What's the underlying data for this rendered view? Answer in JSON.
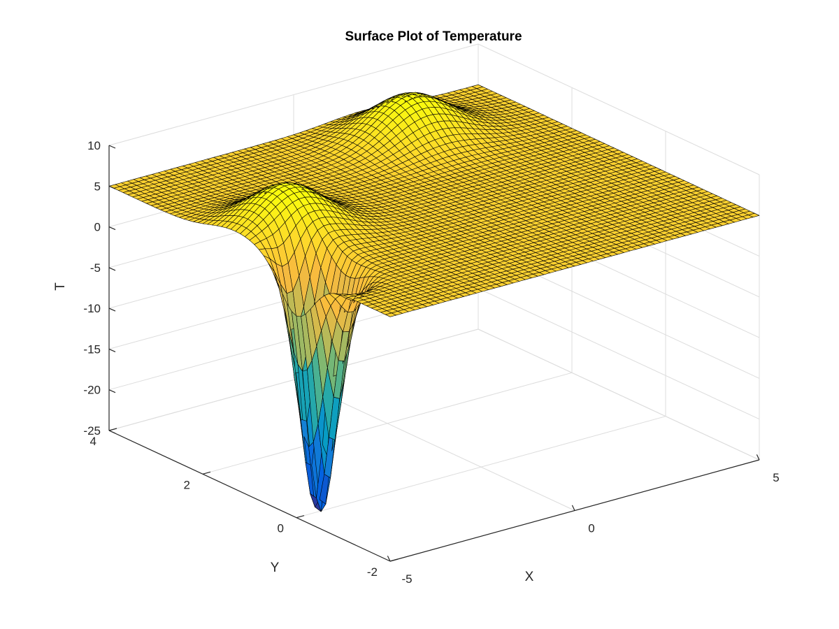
{
  "chart_data": {
    "type": "surface",
    "title": "Surface Plot of Temperature",
    "xlabel": "X",
    "ylabel": "Y",
    "zlabel": "T",
    "xlim": [
      -5,
      5
    ],
    "ylim": [
      -2,
      4
    ],
    "zlim": [
      -25,
      10
    ],
    "xticks": [
      -5,
      0,
      5
    ],
    "yticks": [
      -2,
      0,
      2,
      4
    ],
    "zticks": [
      -25,
      -20,
      -15,
      -10,
      -5,
      0,
      5,
      10
    ],
    "grid": true,
    "colormap": "parula",
    "baseline_value": 5,
    "features": [
      {
        "kind": "peak",
        "x": -3.6,
        "y": 1.3,
        "amplitude": 5.6,
        "sigma_x": 0.9,
        "sigma_y": 0.55
      },
      {
        "kind": "peak",
        "x": 1.9,
        "y": 3.0,
        "amplitude": 5.3,
        "sigma_x": 0.95,
        "sigma_y": 0.5
      },
      {
        "kind": "well",
        "x": -4.4,
        "y": 0.0,
        "amplitude": -31,
        "sigma_x": 0.32,
        "sigma_y": 0.34
      }
    ]
  },
  "colors": {
    "gridline": "#dcdcdc",
    "axis": "#262626",
    "mesh_edge": "#000000"
  }
}
